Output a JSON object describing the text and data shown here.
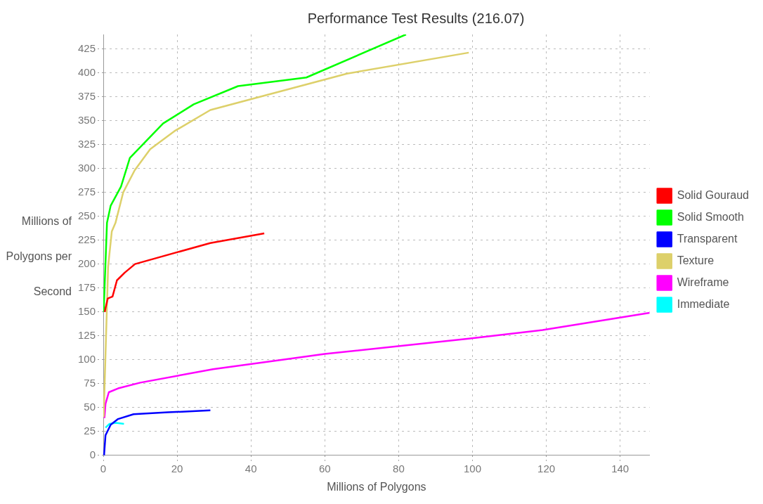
{
  "chart_data": {
    "type": "line",
    "title": "Performance Test Results (216.07)",
    "xlabel": "Millions of Polygons",
    "ylabel": "Millions of Polygons per Second",
    "xlim": [
      0,
      148
    ],
    "ylim": [
      0,
      440
    ],
    "xticks": [
      0,
      20,
      40,
      60,
      80,
      100,
      120,
      140
    ],
    "yticks": [
      0,
      25,
      50,
      75,
      100,
      125,
      150,
      175,
      200,
      225,
      250,
      275,
      300,
      325,
      350,
      375,
      400,
      425
    ],
    "grid": true,
    "legend": "right",
    "marker": "none",
    "line_style": "solid",
    "series": [
      {
        "name": "Solid Gouraud",
        "color": "#ff0000",
        "x": [
          0.4,
          0.6,
          1.2,
          2.5,
          3.7,
          5.8,
          8.6,
          29,
          43.6
        ],
        "values": [
          150,
          154,
          164,
          166,
          183,
          191,
          200,
          222,
          232
        ]
      },
      {
        "name": "Solid Smooth",
        "color": "#00ff00",
        "x": [
          0.1,
          1,
          2,
          4.8,
          7.2,
          16.2,
          24.5,
          36.5,
          55,
          82
        ],
        "values": [
          150,
          243,
          261,
          281,
          311,
          347,
          367,
          386,
          395,
          440
        ]
      },
      {
        "name": "Transparent",
        "color": "#0000ff",
        "x": [
          0.2,
          0.6,
          2,
          4,
          8.2,
          17.5,
          29
        ],
        "values": [
          0,
          21,
          32,
          38,
          43,
          45,
          47
        ]
      },
      {
        "name": "Texture",
        "color": "#ddd06a",
        "x": [
          0.1,
          1.3,
          2.3,
          3.3,
          5.4,
          8.5,
          12.7,
          19.3,
          29,
          66,
          99
        ],
        "values": [
          40,
          197,
          234,
          243,
          275,
          298,
          320,
          339,
          361,
          399,
          421
        ]
      },
      {
        "name": "Wireframe",
        "color": "#ff00ff",
        "x": [
          0.3,
          0.6,
          1.5,
          4,
          10,
          29.7,
          60,
          99,
          119,
          148
        ],
        "values": [
          39,
          54,
          66,
          70,
          76,
          90,
          106,
          122,
          131,
          149
        ]
      },
      {
        "name": "Immediate",
        "color": "#00ffff",
        "x": [
          0.6,
          1.7,
          3.4,
          5.6
        ],
        "values": [
          29,
          33,
          34,
          33
        ]
      }
    ]
  }
}
